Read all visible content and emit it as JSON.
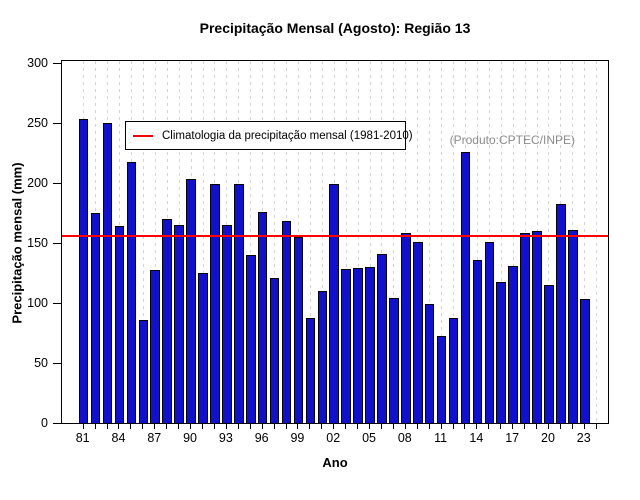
{
  "chart_data": {
    "type": "bar",
    "title": "Precipitação Mensal (Agosto): Região 13",
    "xlabel": "Ano",
    "ylabel": "Precipitação mensal (mm)",
    "annotation": "(Produto:CPTEC/INPE)",
    "legend": {
      "position": "top-left",
      "entries": [
        {
          "label": "Climatologia da precipitação mensal (1981-2010)",
          "color": "#ff0000",
          "style": "line"
        }
      ]
    },
    "years": [
      1981,
      1982,
      1983,
      1984,
      1985,
      1986,
      1987,
      1988,
      1989,
      1990,
      1991,
      1992,
      1993,
      1994,
      1995,
      1996,
      1997,
      1998,
      1999,
      2000,
      2001,
      2002,
      2003,
      2004,
      2005,
      2006,
      2007,
      2008,
      2009,
      2010,
      2011,
      2012,
      2013,
      2014,
      2015,
      2016,
      2017,
      2018,
      2019,
      2020,
      2021,
      2022,
      2023
    ],
    "values": [
      254,
      176,
      251,
      165,
      218,
      87,
      128,
      171,
      166,
      204,
      126,
      200,
      166,
      200,
      141,
      177,
      122,
      169,
      156,
      88,
      111,
      200,
      129,
      130,
      131,
      142,
      105,
      159,
      152,
      100,
      73,
      88,
      227,
      137,
      152,
      118,
      132,
      159,
      161,
      116,
      183,
      162,
      104
    ],
    "climatology_line": {
      "value": 157,
      "color": "#ff0000"
    },
    "ylim": [
      0,
      303
    ],
    "yticks": [
      0,
      50,
      100,
      150,
      200,
      250,
      300
    ],
    "x_tick_labels": [
      "81",
      "84",
      "87",
      "90",
      "93",
      "96",
      "99",
      "02",
      "05",
      "08",
      "11",
      "14",
      "17",
      "20",
      "23"
    ],
    "x_tick_step_years": 3,
    "x_axis_last_slot_year": 2024,
    "bar_color": "#0f10d0",
    "bar_border_color": "#000000",
    "grid": "vertical-dashed",
    "grid_color": "#d4d4d4",
    "annotation_color": "#8c8c8c",
    "background_color": "#ffffff"
  }
}
